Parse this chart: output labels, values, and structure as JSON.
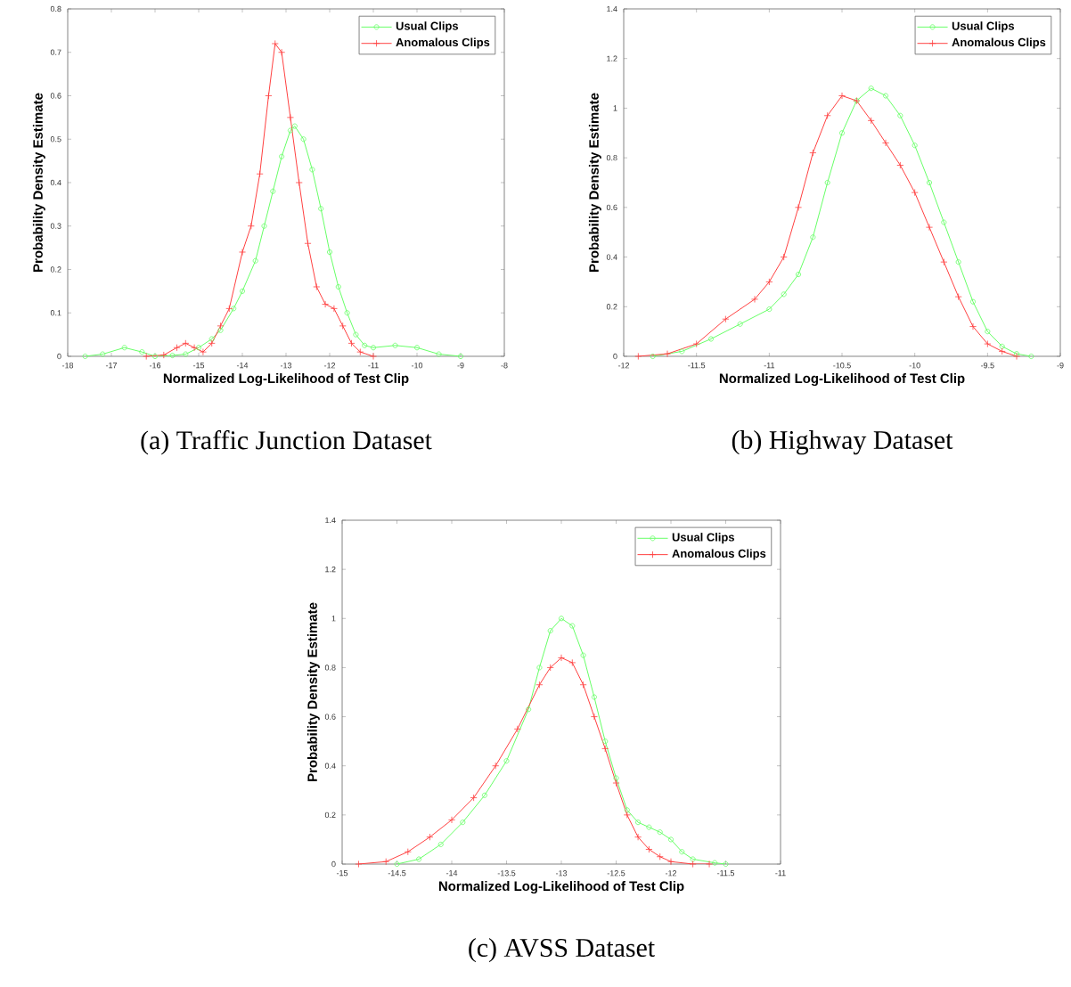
{
  "chart_data": [
    {
      "type": "line",
      "title": "(a) Traffic Junction Dataset",
      "xlabel": "Normalized Log-Likelihood of Test Clip",
      "ylabel": "Probability Density Estimate",
      "xlim": [
        -18,
        -8
      ],
      "ylim": [
        0,
        0.8
      ],
      "xticks": [
        -18,
        -17,
        -16,
        -15,
        -14,
        -13,
        -12,
        -11,
        -10,
        -9,
        -8
      ],
      "yticks": [
        0,
        0.1,
        0.2,
        0.3,
        0.4,
        0.5,
        0.6,
        0.7,
        0.8
      ],
      "legend": "top right",
      "series": [
        {
          "name": "Usual Clips",
          "color": "#66ff66",
          "marker": "circle",
          "x": [
            -17.6,
            -17.2,
            -16.7,
            -16.3,
            -16.0,
            -15.6,
            -15.3,
            -15.0,
            -14.7,
            -14.5,
            -14.2,
            -14.0,
            -13.7,
            -13.5,
            -13.3,
            -13.1,
            -12.9,
            -12.8,
            -12.6,
            -12.4,
            -12.2,
            -12.0,
            -11.8,
            -11.6,
            -11.4,
            -11.2,
            -11.0,
            -10.5,
            -10.0,
            -9.5,
            -9.0
          ],
          "values": [
            0,
            0.005,
            0.02,
            0.01,
            0,
            0.002,
            0.005,
            0.02,
            0.04,
            0.06,
            0.11,
            0.15,
            0.22,
            0.3,
            0.38,
            0.46,
            0.52,
            0.53,
            0.5,
            0.43,
            0.34,
            0.24,
            0.16,
            0.1,
            0.05,
            0.025,
            0.02,
            0.025,
            0.02,
            0.005,
            0
          ]
        },
        {
          "name": "Anomalous Clips",
          "color": "#ff4040",
          "marker": "cross",
          "x": [
            -16.2,
            -15.8,
            -15.5,
            -15.3,
            -15.1,
            -14.9,
            -14.7,
            -14.5,
            -14.3,
            -14.0,
            -13.8,
            -13.6,
            -13.4,
            -13.25,
            -13.1,
            -12.9,
            -12.7,
            -12.5,
            -12.3,
            -12.1,
            -11.9,
            -11.7,
            -11.5,
            -11.3,
            -11.0
          ],
          "values": [
            0,
            0.003,
            0.02,
            0.03,
            0.02,
            0.01,
            0.03,
            0.07,
            0.11,
            0.24,
            0.3,
            0.42,
            0.6,
            0.72,
            0.7,
            0.55,
            0.4,
            0.26,
            0.16,
            0.12,
            0.11,
            0.07,
            0.03,
            0.01,
            0
          ]
        }
      ]
    },
    {
      "type": "line",
      "title": "(b) Highway Dataset",
      "xlabel": "Normalized Log-Likelihood of Test Clip",
      "ylabel": "Probability Density Estimate",
      "xlim": [
        -12,
        -9
      ],
      "ylim": [
        0,
        1.4
      ],
      "xticks": [
        -12,
        -11.5,
        -11,
        -10.5,
        -10,
        -9.5,
        -9
      ],
      "yticks": [
        0,
        0.2,
        0.4,
        0.6,
        0.8,
        1,
        1.2,
        1.4
      ],
      "legend": "top right",
      "series": [
        {
          "name": "Usual Clips",
          "color": "#66ff66",
          "marker": "circle",
          "x": [
            -11.8,
            -11.6,
            -11.4,
            -11.2,
            -11.0,
            -10.9,
            -10.8,
            -10.7,
            -10.6,
            -10.5,
            -10.4,
            -10.3,
            -10.2,
            -10.1,
            -10.0,
            -9.9,
            -9.8,
            -9.7,
            -9.6,
            -9.5,
            -9.4,
            -9.3,
            -9.2
          ],
          "values": [
            0,
            0.02,
            0.07,
            0.13,
            0.19,
            0.25,
            0.33,
            0.48,
            0.7,
            0.9,
            1.03,
            1.08,
            1.05,
            0.97,
            0.85,
            0.7,
            0.54,
            0.38,
            0.22,
            0.1,
            0.04,
            0.01,
            0
          ]
        },
        {
          "name": "Anomalous Clips",
          "color": "#ff4040",
          "marker": "cross",
          "x": [
            -11.9,
            -11.7,
            -11.5,
            -11.3,
            -11.1,
            -11.0,
            -10.9,
            -10.8,
            -10.7,
            -10.6,
            -10.5,
            -10.4,
            -10.3,
            -10.2,
            -10.1,
            -10.0,
            -9.9,
            -9.8,
            -9.7,
            -9.6,
            -9.5,
            -9.4,
            -9.3
          ],
          "values": [
            0,
            0.01,
            0.05,
            0.15,
            0.23,
            0.3,
            0.4,
            0.6,
            0.82,
            0.97,
            1.05,
            1.03,
            0.95,
            0.86,
            0.77,
            0.66,
            0.52,
            0.38,
            0.24,
            0.12,
            0.05,
            0.02,
            0
          ]
        }
      ]
    },
    {
      "type": "line",
      "title": "(c) AVSS Dataset",
      "xlabel": "Normalized Log-Likelihood of Test Clip",
      "ylabel": "Probability Density Estimate",
      "xlim": [
        -15,
        -11
      ],
      "ylim": [
        0,
        1.4
      ],
      "xticks": [
        -15,
        -14.5,
        -14,
        -13.5,
        -13,
        -12.5,
        -12,
        -11.5,
        -11
      ],
      "yticks": [
        0,
        0.2,
        0.4,
        0.6,
        0.8,
        1,
        1.2,
        1.4
      ],
      "legend": "top right",
      "series": [
        {
          "name": "Usual Clips",
          "color": "#66ff66",
          "marker": "circle",
          "x": [
            -14.5,
            -14.3,
            -14.1,
            -13.9,
            -13.7,
            -13.5,
            -13.3,
            -13.2,
            -13.1,
            -13.0,
            -12.9,
            -12.8,
            -12.7,
            -12.6,
            -12.5,
            -12.4,
            -12.3,
            -12.2,
            -12.1,
            -12.0,
            -11.9,
            -11.8,
            -11.6,
            -11.5
          ],
          "values": [
            0,
            0.02,
            0.08,
            0.17,
            0.28,
            0.42,
            0.63,
            0.8,
            0.95,
            1.0,
            0.97,
            0.85,
            0.68,
            0.5,
            0.35,
            0.22,
            0.17,
            0.15,
            0.13,
            0.1,
            0.05,
            0.02,
            0.005,
            0
          ]
        },
        {
          "name": "Anomalous Clips",
          "color": "#ff4040",
          "marker": "cross",
          "x": [
            -14.85,
            -14.6,
            -14.4,
            -14.2,
            -14.0,
            -13.8,
            -13.6,
            -13.4,
            -13.2,
            -13.1,
            -13.0,
            -12.9,
            -12.8,
            -12.7,
            -12.6,
            -12.5,
            -12.4,
            -12.3,
            -12.2,
            -12.1,
            -12.0,
            -11.8,
            -11.65
          ],
          "values": [
            0,
            0.01,
            0.05,
            0.11,
            0.18,
            0.27,
            0.4,
            0.55,
            0.73,
            0.8,
            0.84,
            0.82,
            0.73,
            0.6,
            0.47,
            0.33,
            0.2,
            0.11,
            0.06,
            0.03,
            0.01,
            0,
            0
          ]
        }
      ]
    }
  ]
}
